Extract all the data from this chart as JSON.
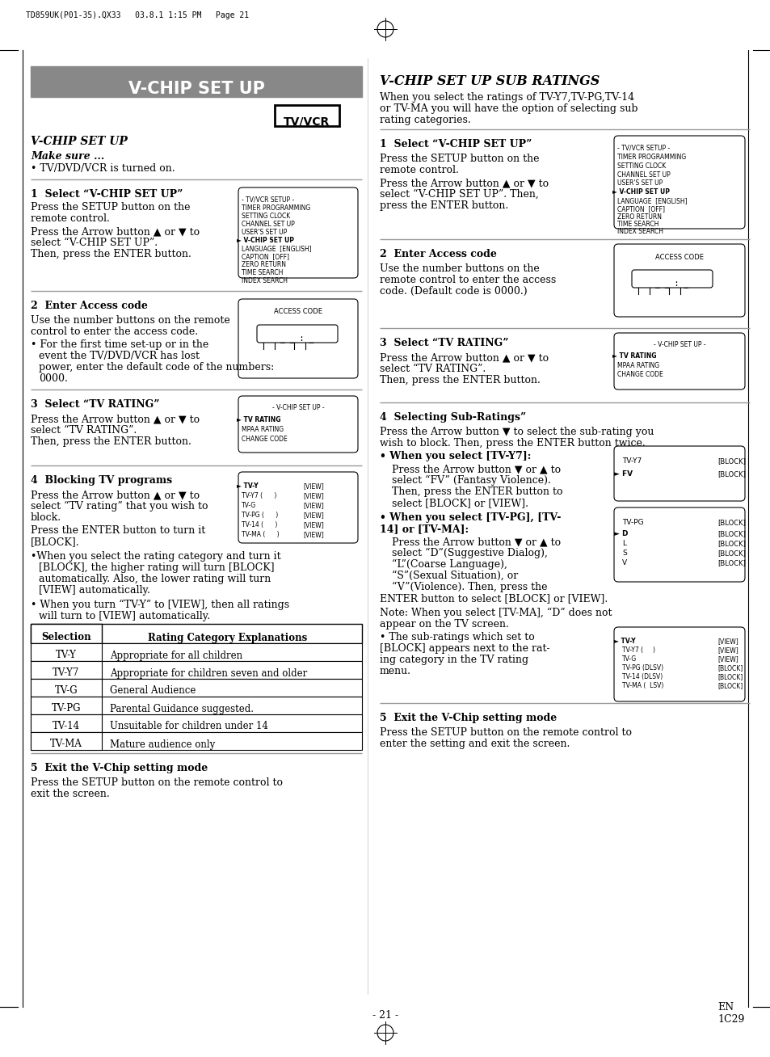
{
  "page_bg": "#ffffff",
  "header_text": "TD859UK(P01-35).QX33   03.8.1 1:15 PM   Page 21",
  "left_header_text": "V-CHIP SET UP",
  "footer_center": "- 21 -",
  "footer_right1": "EN",
  "footer_right2": "1C29"
}
